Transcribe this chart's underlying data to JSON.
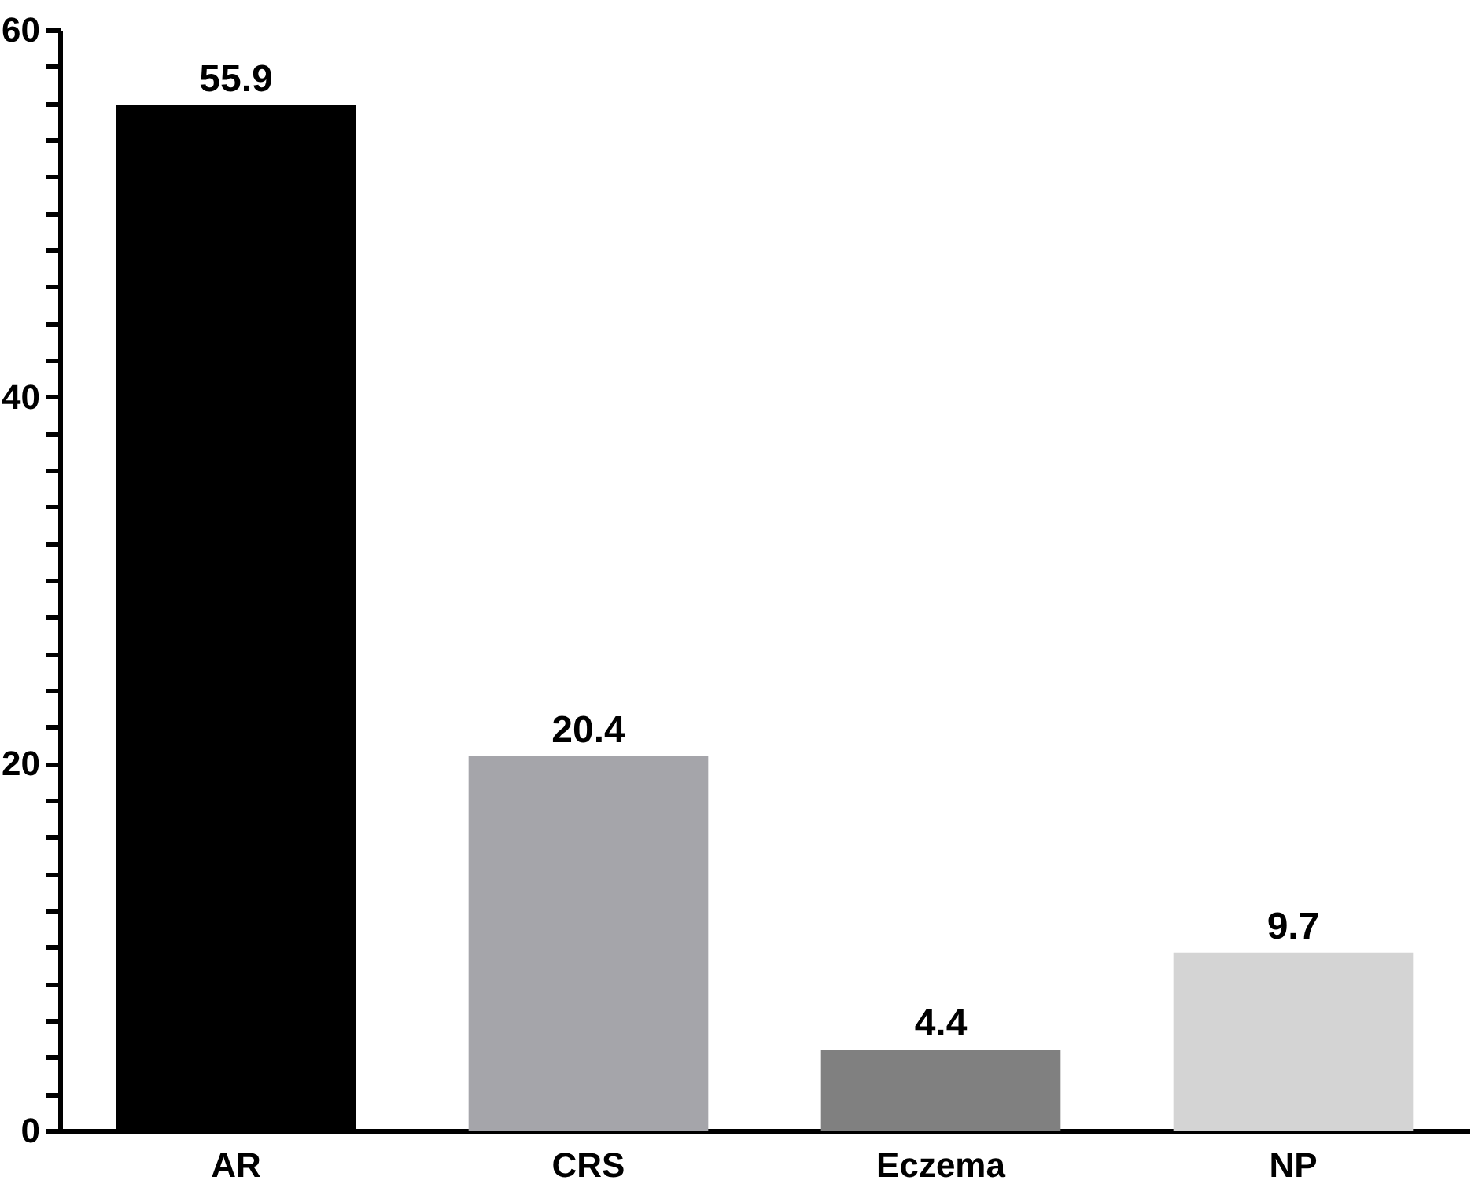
{
  "chart_data": {
    "type": "bar",
    "categories": [
      "AR",
      "CRS",
      "Eczema",
      "NP"
    ],
    "values": [
      55.9,
      20.4,
      4.4,
      9.7
    ],
    "colors": [
      "#000000",
      "#a5a5aa",
      "#808080",
      "#d4d4d4"
    ],
    "ylim": [
      0,
      60
    ],
    "yticks": [
      0,
      {
        "value": 2,
        "label": null
      },
      {
        "value": 4,
        "label": null
      },
      {
        "value": 6,
        "label": null
      },
      {
        "value": 8,
        "label": null
      },
      {
        "value": 10,
        "label": null
      },
      {
        "value": 12,
        "label": null
      },
      {
        "value": 14,
        "label": null
      },
      {
        "value": 16,
        "label": null
      },
      {
        "value": 18,
        "label": null
      },
      20,
      {
        "value": 22,
        "label": null
      },
      {
        "value": 24,
        "label": null
      },
      {
        "value": 26,
        "label": null
      },
      {
        "value": 28,
        "label": null
      },
      {
        "value": 30,
        "label": null
      },
      {
        "value": 32,
        "label": null
      },
      {
        "value": 34,
        "label": null
      },
      {
        "value": 36,
        "label": null
      },
      {
        "value": 38,
        "label": null
      },
      40,
      {
        "value": 42,
        "label": null
      },
      {
        "value": 44,
        "label": null
      },
      {
        "value": 46,
        "label": null
      },
      {
        "value": 48,
        "label": null
      },
      {
        "value": 50,
        "label": null
      },
      {
        "value": 52,
        "label": null
      },
      {
        "value": 54,
        "label": null
      },
      {
        "value": 56,
        "label": null
      },
      {
        "value": 58,
        "label": null
      },
      60
    ],
    "data_labels": true,
    "grid": false
  }
}
